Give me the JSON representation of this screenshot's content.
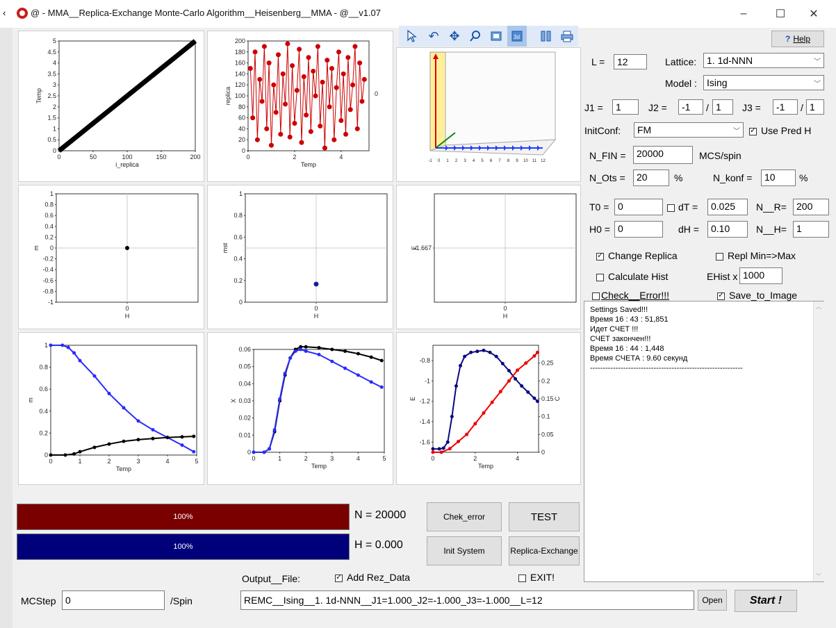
{
  "window": {
    "title": "@  -  MMA__Replica-Exchange Monte-Carlo Algorithm__Heisenberg__MMA  -  @__v1.07",
    "minimize": "–",
    "maximize": "☐",
    "close": "✕"
  },
  "help_label": "Help",
  "toolbar_icons": [
    "pointer-icon",
    "rotate-icon",
    "pan-icon",
    "zoom-icon",
    "zoom-box-icon",
    "3d-icon",
    "properties-icon",
    "print-icon"
  ],
  "params": {
    "L_label": "L =",
    "L_value": "12",
    "lattice_label": "Lattice:",
    "lattice_value": "1. 1d-NNN",
    "model_label": "Model :",
    "model_value": "Ising",
    "J1_label": "J1 =",
    "J1_value": "1",
    "J2_label": "J2 =",
    "J2_value": "-1",
    "J2_div": "1",
    "J3_label": "J3 =",
    "J3_value": "-1",
    "J3_div": "1",
    "slash": "/",
    "initconf_label": "InitConf:",
    "initconf_value": "FM",
    "use_pred_label": "Use Pred H",
    "nfin_label": "N_FIN =",
    "nfin_value": "20000",
    "nfin_unit": "MCS/spin",
    "nots_label": "N_Ots =",
    "nots_value": "20",
    "nots_unit": "%",
    "nkonf_label": "N_konf =",
    "nkonf_value": "10",
    "nkonf_unit": "%",
    "T0_label": "T0 =",
    "T0_value": "0",
    "dT_label": "dT =",
    "dT_value": "0.025",
    "NR_label": "N__R=",
    "NR_value": "200",
    "H0_label": "H0 =",
    "H0_value": "0",
    "dH_label": "dH =",
    "dH_value": "0.10",
    "NH_label": "N__H=",
    "NH_value": "1",
    "change_replica_label": "Change Replica",
    "repl_minmax_label": "Repl Min=>Max",
    "calc_hist_label": "Calculate Hist",
    "ehist_label": "EHist x",
    "ehist_value": "1000",
    "check_error_label": "Check__Error!!!",
    "save_image_label": "Save_to_Image"
  },
  "log_lines": [
    "Settings Saved!!!",
    "Время 16 : 43 : 51,851",
    "Идет СЧЕТ !!!",
    "СЧЕТ закончен!!!",
    "Время 16 : 44 : 1,448",
    "Время СЧЕТА :  9.60 секунд",
    "------------------------------------------------------------"
  ],
  "progress": {
    "n_bar_label": "100%",
    "n_bar_fraction": 1.0,
    "n_text": "N = 20000",
    "h_bar_label": "100%",
    "h_bar_fraction": 1.0,
    "h_text": "H = 0.000",
    "n_color": "#7a0000",
    "h_color": "#00007a"
  },
  "buttons": {
    "chek_error": "Chek_error",
    "test": "TEST",
    "init_system": "Init System",
    "replica_exchange": "Replica-Exchange",
    "open": "Open",
    "start": "Start !"
  },
  "output": {
    "file_label": "Output__File:",
    "add_rez_label": "Add Rez_Data",
    "exit_label": "EXIT!",
    "mcstep_label": "MCStep",
    "mcstep_value": "0",
    "per_spin": "/Spin",
    "filename": "REMC__Ising__1. 1d-NNN__J1=1.000_J2=-1.000_J3=-1.000__L=12"
  },
  "chart_data": [
    {
      "type": "scatter",
      "title": "",
      "xlabel": "i_replica",
      "ylabel": "Temp",
      "xlim": [
        0,
        200
      ],
      "ylim": [
        0,
        5
      ],
      "xticks": [
        "0",
        "50",
        "100",
        "150",
        "200"
      ],
      "yticks": [
        "0",
        "0.5",
        "1",
        "1.5",
        "2",
        "2.5",
        "3",
        "3.5",
        "4",
        "4.5",
        "5"
      ],
      "series": [
        {
          "color": "#000000",
          "x": [
            0,
            25,
            50,
            75,
            100,
            125,
            150,
            175,
            200
          ],
          "y": [
            0,
            0.625,
            1.25,
            1.875,
            2.5,
            3.125,
            3.75,
            4.375,
            5
          ]
        }
      ]
    },
    {
      "type": "line",
      "title": "",
      "xlabel": "Temp",
      "ylabel": "replica",
      "xlim": [
        0,
        5.2
      ],
      "ylim": [
        0,
        200
      ],
      "xticks": [
        "0",
        "2",
        "4"
      ],
      "yticks": [
        "0",
        "20",
        "40",
        "60",
        "80",
        "100",
        "120",
        "140",
        "160",
        "180",
        "200"
      ],
      "right_ytick": "0",
      "series": [
        {
          "color": "#cc0000",
          "x": [
            0.1,
            0.2,
            0.3,
            0.4,
            0.5,
            0.6,
            0.7,
            0.8,
            0.9,
            1.0,
            1.1,
            1.2,
            1.3,
            1.4,
            1.5,
            1.6,
            1.7,
            1.8,
            1.9,
            2.0,
            2.1,
            2.2,
            2.3,
            2.4,
            2.5,
            2.6,
            2.7,
            2.8,
            2.9,
            3.0,
            3.1,
            3.2,
            3.3,
            3.4,
            3.5,
            3.6,
            3.7,
            3.8,
            3.9,
            4.0,
            4.1,
            4.2,
            4.3,
            4.4,
            4.5,
            4.6,
            4.7,
            4.8,
            4.9,
            5.0
          ],
          "y": [
            150,
            60,
            180,
            20,
            130,
            90,
            190,
            40,
            160,
            10,
            120,
            70,
            175,
            30,
            140,
            85,
            195,
            25,
            155,
            50,
            110,
            185,
            15,
            135,
            65,
            170,
            35,
            145,
            100,
            190,
            45,
            125,
            5,
            165,
            80,
            150,
            20,
            115,
            180,
            55,
            140,
            30,
            170,
            75,
            120,
            190,
            40,
            160,
            90,
            130
          ]
        }
      ]
    },
    {
      "type": "scatter",
      "title": "",
      "xlabel": "",
      "ylabel": "",
      "note": "3D spin view",
      "xticks": [
        "-1",
        "0",
        "1",
        "2",
        "3",
        "4",
        "5",
        "6",
        "7",
        "8",
        "9",
        "10",
        "11",
        "12"
      ]
    },
    {
      "type": "scatter",
      "title": "",
      "xlabel": "H",
      "ylabel": "m",
      "xlim": [
        -1,
        1
      ],
      "ylim": [
        -1,
        1
      ],
      "xticks": [
        "0"
      ],
      "yticks": [
        "-1",
        "-0.8",
        "-0.6",
        "-0.4",
        "-0.2",
        "0",
        "0.2",
        "0.4",
        "0.6",
        "0.8",
        "1"
      ],
      "series": [
        {
          "color": "#000000",
          "x": [
            0
          ],
          "y": [
            0
          ]
        }
      ]
    },
    {
      "type": "scatter",
      "title": "",
      "xlabel": "H",
      "ylabel": "mst",
      "xlim": [
        -1,
        1
      ],
      "ylim": [
        0,
        1
      ],
      "xticks": [
        "0"
      ],
      "yticks": [
        "0",
        "0.2",
        "0.4",
        "0.6",
        "0.8",
        "1"
      ],
      "series": [
        {
          "color": "#1a1aa0",
          "x": [
            0
          ],
          "y": [
            0.167
          ]
        }
      ]
    },
    {
      "type": "scatter",
      "title": "",
      "xlabel": "H",
      "ylabel": "E",
      "xticks": [
        "0"
      ],
      "yticks": [
        "-1.667"
      ],
      "series": []
    },
    {
      "type": "line",
      "title": "",
      "xlabel": "Temp",
      "ylabel": "m",
      "xlim": [
        0,
        5
      ],
      "ylim": [
        0,
        1
      ],
      "xticks": [
        "0",
        "1",
        "2",
        "3",
        "4",
        "5"
      ],
      "yticks": [
        "0",
        "0.2",
        "0.4",
        "0.6",
        "0.8",
        "1"
      ],
      "series": [
        {
          "color": "#2a2aff",
          "x": [
            0,
            0.4,
            0.6,
            0.8,
            1,
            1.5,
            2,
            2.5,
            3,
            3.5,
            4,
            4.5,
            4.9
          ],
          "y": [
            1,
            1,
            0.98,
            0.93,
            0.86,
            0.72,
            0.56,
            0.43,
            0.31,
            0.23,
            0.16,
            0.09,
            0.03
          ]
        },
        {
          "color": "#000000",
          "x": [
            0,
            0.5,
            0.8,
            1,
            1.5,
            2,
            2.5,
            3,
            3.5,
            4,
            4.5,
            4.9
          ],
          "y": [
            0,
            0,
            0.01,
            0.03,
            0.07,
            0.1,
            0.125,
            0.14,
            0.15,
            0.16,
            0.165,
            0.17
          ]
        }
      ]
    },
    {
      "type": "line",
      "title": "",
      "xlabel": "Temp",
      "ylabel": "X",
      "xlim": [
        0,
        5
      ],
      "ylim": [
        0,
        0.06
      ],
      "xticks": [
        "0",
        "1",
        "2",
        "3",
        "4",
        "5"
      ],
      "yticks": [
        "0",
        "0.01",
        "0.02",
        "0.03",
        "0.04",
        "0.05",
        "0.06"
      ],
      "series": [
        {
          "color": "#000000",
          "x": [
            0,
            0.4,
            0.6,
            0.8,
            1,
            1.2,
            1.4,
            1.6,
            1.8,
            2,
            2.5,
            3,
            3.5,
            4,
            4.5,
            4.9
          ],
          "y": [
            0,
            0,
            0.002,
            0.012,
            0.03,
            0.045,
            0.055,
            0.06,
            0.0615,
            0.0615,
            0.061,
            0.06,
            0.059,
            0.0575,
            0.0555,
            0.0535
          ]
        },
        {
          "color": "#2a2aff",
          "x": [
            0,
            0.4,
            0.6,
            0.8,
            1,
            1.2,
            1.4,
            1.6,
            1.8,
            2,
            2.5,
            3,
            3.5,
            4,
            4.5,
            4.9
          ],
          "y": [
            0,
            0,
            0.002,
            0.013,
            0.031,
            0.046,
            0.055,
            0.059,
            0.06,
            0.059,
            0.057,
            0.053,
            0.049,
            0.045,
            0.041,
            0.038
          ]
        }
      ]
    },
    {
      "type": "line",
      "title": "",
      "xlabel": "Temp",
      "ylabel": "E",
      "ylabel_right": "C",
      "xlim": [
        0,
        5
      ],
      "ylim": [
        -1.7,
        -0.65
      ],
      "ylim_right": [
        0,
        0.3
      ],
      "xticks": [
        "0",
        "2",
        "4"
      ],
      "yticks": [
        "-1.6",
        "-1.4",
        "-1.2",
        "-1",
        "-0.8"
      ],
      "yticks_right": [
        "0",
        "0.05",
        "0.1",
        "0.15",
        "0.2",
        "0.25"
      ],
      "series": [
        {
          "color": "#0a0a80",
          "axis": "left",
          "x": [
            0,
            0.3,
            0.5,
            0.7,
            0.9,
            1.1,
            1.3,
            1.5,
            1.8,
            2.1,
            2.4,
            2.7,
            3.0,
            3.3,
            3.6,
            3.9,
            4.2,
            4.5,
            4.8,
            4.95
          ],
          "y": [
            -1.667,
            -1.667,
            -1.66,
            -1.6,
            -1.35,
            -1.05,
            -0.85,
            -0.76,
            -0.72,
            -0.71,
            -0.7,
            -0.72,
            -0.76,
            -0.83,
            -0.9,
            -0.98,
            -1.05,
            -1.11,
            -1.17,
            -1.2
          ]
        },
        {
          "color": "#ee0000",
          "axis": "right",
          "x": [
            0,
            0.4,
            0.8,
            1.2,
            1.6,
            2,
            2.4,
            2.8,
            3.2,
            3.6,
            4,
            4.4,
            4.8,
            4.95
          ],
          "y": [
            0,
            0,
            0.01,
            0.03,
            0.05,
            0.08,
            0.11,
            0.14,
            0.17,
            0.2,
            0.23,
            0.25,
            0.27,
            0.28
          ]
        }
      ]
    }
  ]
}
